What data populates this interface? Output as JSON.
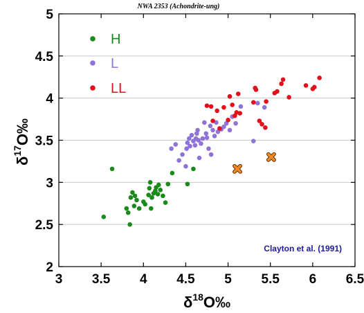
{
  "chart_data": {
    "type": "scatter",
    "title": "NWA 2353 (Achondrite-ung)",
    "xlabel": {
      "delta": "δ",
      "sup": "18",
      "rest": "O‰"
    },
    "ylabel": {
      "delta": "δ",
      "sup": "17",
      "rest": "O‰"
    },
    "xlim": [
      3,
      6.5
    ],
    "ylim": [
      2,
      5
    ],
    "xticks": [
      "3",
      "3.5",
      "4",
      "4.5",
      "5",
      "5.5",
      "6",
      "6.5"
    ],
    "yticks": [
      "2",
      "2.5",
      "3",
      "3.5",
      "4",
      "4.5",
      "5"
    ],
    "grid": "horizontal",
    "legend_position": "top-left",
    "annotation": "Clayton et al. (1991)",
    "colors": {
      "H": "#1a8a1a",
      "L": "#8f73d6",
      "LL": "#e0101c",
      "NWA 2353": "#f08a24"
    },
    "series": [
      {
        "name": "H",
        "marker": "circle",
        "points": [
          [
            3.63,
            3.16
          ],
          [
            3.53,
            2.59
          ],
          [
            3.8,
            2.69
          ],
          [
            3.82,
            2.64
          ],
          [
            3.84,
            2.5
          ],
          [
            3.85,
            2.82
          ],
          [
            3.87,
            2.88
          ],
          [
            3.89,
            2.72
          ],
          [
            3.9,
            2.84
          ],
          [
            3.92,
            2.79
          ],
          [
            3.95,
            2.69
          ],
          [
            4.0,
            2.77
          ],
          [
            4.02,
            2.74
          ],
          [
            4.06,
            2.85
          ],
          [
            4.07,
            2.93
          ],
          [
            4.08,
            3.0
          ],
          [
            4.09,
            2.69
          ],
          [
            4.1,
            2.82
          ],
          [
            4.12,
            2.87
          ],
          [
            4.14,
            2.9
          ],
          [
            4.15,
            2.94
          ],
          [
            4.17,
            2.86
          ],
          [
            4.18,
            2.97
          ],
          [
            4.2,
            2.91
          ],
          [
            4.23,
            2.84
          ],
          [
            4.26,
            2.76
          ],
          [
            4.29,
            2.98
          ],
          [
            4.34,
            3.11
          ],
          [
            4.52,
            2.98
          ],
          [
            4.59,
            3.16
          ]
        ]
      },
      {
        "name": "L",
        "marker": "circle",
        "points": [
          [
            4.33,
            3.4
          ],
          [
            4.38,
            3.45
          ],
          [
            4.42,
            3.26
          ],
          [
            4.46,
            3.33
          ],
          [
            4.5,
            3.19
          ],
          [
            4.51,
            3.4
          ],
          [
            4.52,
            3.47
          ],
          [
            4.54,
            3.52
          ],
          [
            4.55,
            3.43
          ],
          [
            4.57,
            3.56
          ],
          [
            4.59,
            3.49
          ],
          [
            4.61,
            3.44
          ],
          [
            4.62,
            3.52
          ],
          [
            4.63,
            3.58
          ],
          [
            4.64,
            3.62
          ],
          [
            4.65,
            3.5
          ],
          [
            4.66,
            3.29
          ],
          [
            4.68,
            3.46
          ],
          [
            4.7,
            3.52
          ],
          [
            4.72,
            3.71
          ],
          [
            4.74,
            3.58
          ],
          [
            4.75,
            3.53
          ],
          [
            4.77,
            3.4
          ],
          [
            4.79,
            3.67
          ],
          [
            4.8,
            3.33
          ],
          [
            4.82,
            3.62
          ],
          [
            4.84,
            3.55
          ],
          [
            4.86,
            3.71
          ],
          [
            4.88,
            3.6
          ],
          [
            4.92,
            3.63
          ],
          [
            4.95,
            3.66
          ],
          [
            4.98,
            3.7
          ],
          [
            5.02,
            3.62
          ],
          [
            5.05,
            3.78
          ],
          [
            5.09,
            3.7
          ],
          [
            5.15,
            3.9
          ],
          [
            5.3,
            3.49
          ],
          [
            5.35,
            3.94
          ],
          [
            5.43,
            3.89
          ]
        ]
      },
      {
        "name": "LL",
        "marker": "circle",
        "points": [
          [
            4.75,
            3.91
          ],
          [
            4.8,
            3.9
          ],
          [
            4.82,
            3.73
          ],
          [
            4.87,
            3.85
          ],
          [
            4.9,
            3.64
          ],
          [
            4.95,
            3.89
          ],
          [
            5.0,
            3.74
          ],
          [
            5.02,
            4.02
          ],
          [
            5.05,
            3.92
          ],
          [
            5.08,
            3.79
          ],
          [
            5.1,
            3.83
          ],
          [
            5.12,
            4.05
          ],
          [
            5.14,
            3.82
          ],
          [
            5.3,
            3.95
          ],
          [
            5.32,
            4.12
          ],
          [
            5.33,
            4.1
          ],
          [
            5.37,
            3.73
          ],
          [
            5.4,
            3.69
          ],
          [
            5.44,
            3.65
          ],
          [
            5.45,
            3.96
          ],
          [
            5.55,
            4.06
          ],
          [
            5.58,
            4.08
          ],
          [
            5.63,
            4.17
          ],
          [
            5.65,
            4.22
          ],
          [
            5.72,
            4.01
          ],
          [
            5.92,
            4.15
          ],
          [
            6.0,
            4.11
          ],
          [
            6.02,
            4.13
          ],
          [
            6.08,
            4.24
          ]
        ]
      },
      {
        "name": "NWA 2353",
        "marker": "x",
        "points": [
          [
            5.11,
            3.16
          ],
          [
            5.51,
            3.3
          ]
        ]
      }
    ]
  }
}
